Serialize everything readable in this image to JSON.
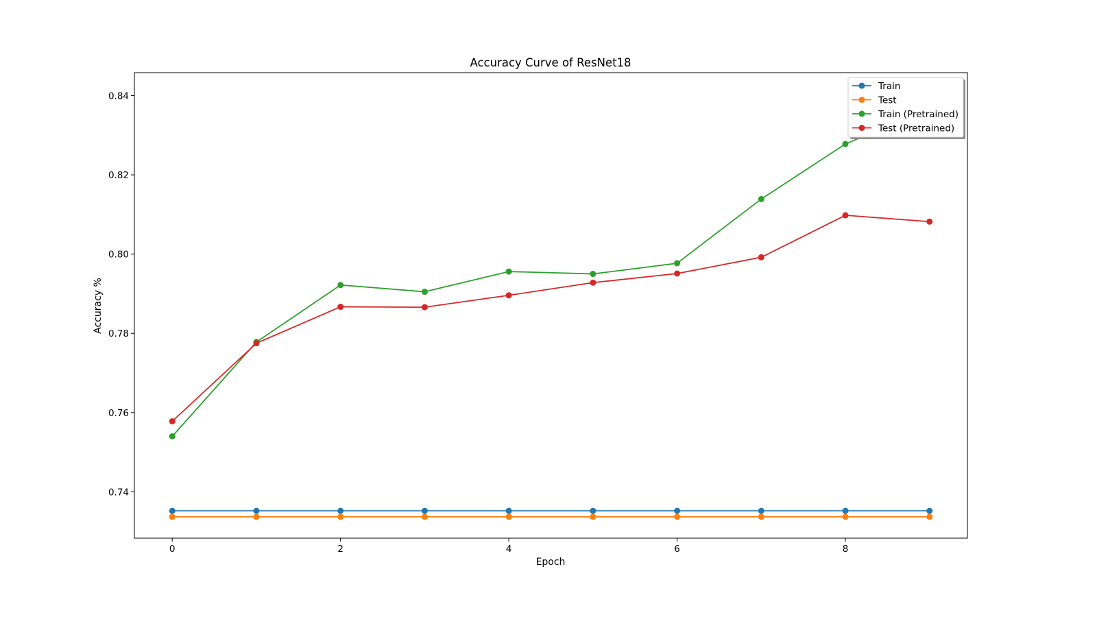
{
  "chart_data": {
    "type": "line",
    "title": "Accuracy Curve of ResNet18",
    "xlabel": "Epoch",
    "ylabel": "Accuracy %",
    "x": [
      0,
      1,
      2,
      3,
      4,
      5,
      6,
      7,
      8,
      9
    ],
    "xlim": [
      -0.45,
      9.45
    ],
    "ylim": [
      0.7283,
      0.8458
    ],
    "xticks": [
      0,
      2,
      4,
      6,
      8
    ],
    "yticks": [
      0.74,
      0.76,
      0.78,
      0.8,
      0.82,
      0.84
    ],
    "xtick_labels": [
      "0",
      "2",
      "4",
      "6",
      "8"
    ],
    "ytick_labels": [
      "0.74",
      "0.76",
      "0.78",
      "0.80",
      "0.82",
      "0.84"
    ],
    "grid": false,
    "legend_position": "top-right",
    "series": [
      {
        "name": "Train",
        "color": "#1f77b4",
        "values": [
          0.7352,
          0.7352,
          0.7352,
          0.7352,
          0.7352,
          0.7352,
          0.7352,
          0.7352,
          0.7352,
          0.7352
        ]
      },
      {
        "name": "Test",
        "color": "#ff7f0e",
        "values": [
          0.7337,
          0.7337,
          0.7337,
          0.7337,
          0.7337,
          0.7337,
          0.7337,
          0.7337,
          0.7337,
          0.7337
        ]
      },
      {
        "name": "Train (Pretrained)",
        "color": "#2ca02c",
        "values": [
          0.754,
          0.7778,
          0.7922,
          0.7905,
          0.7956,
          0.795,
          0.7977,
          0.8139,
          0.8278,
          0.8368
        ]
      },
      {
        "name": "Test (Pretrained)",
        "color": "#d62728",
        "values": [
          0.7578,
          0.7775,
          0.7867,
          0.7866,
          0.7896,
          0.7928,
          0.7951,
          0.7992,
          0.8098,
          0.8082
        ]
      }
    ]
  }
}
